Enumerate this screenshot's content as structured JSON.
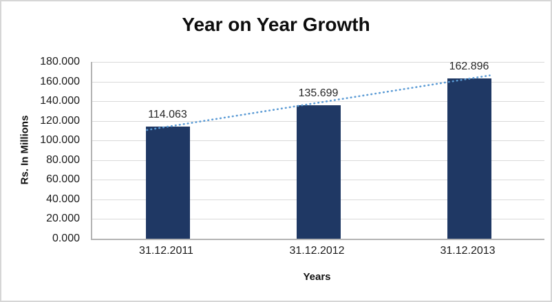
{
  "chart_data": {
    "type": "bar",
    "title": "Year on Year Growth",
    "categories": [
      "31.12.2011",
      "31.12.2012",
      "31.12.2013"
    ],
    "values": [
      114.063,
      135.699,
      162.896
    ],
    "value_labels": [
      "114.063",
      "135.699",
      "162.896"
    ],
    "xlabel": "Years",
    "ylabel": "Rs. In Millions",
    "ylim": [
      0,
      180
    ],
    "ytick_step": 20,
    "ytick_labels": [
      "0.000",
      "20.000",
      "40.000",
      "60.000",
      "80.000",
      "100.000",
      "120.000",
      "140.000",
      "160.000",
      "180.000"
    ],
    "grid": true,
    "legend": "none",
    "trendline": {
      "style": "dotted",
      "through": "bar-tops"
    },
    "colors": {
      "bar": "#1f3864",
      "trendline": "#5b9bd5",
      "gridline": "#d9d9d9",
      "axis": "#b3b3b3",
      "title_text": "#0d0d0d",
      "label_text": "#262626"
    }
  }
}
